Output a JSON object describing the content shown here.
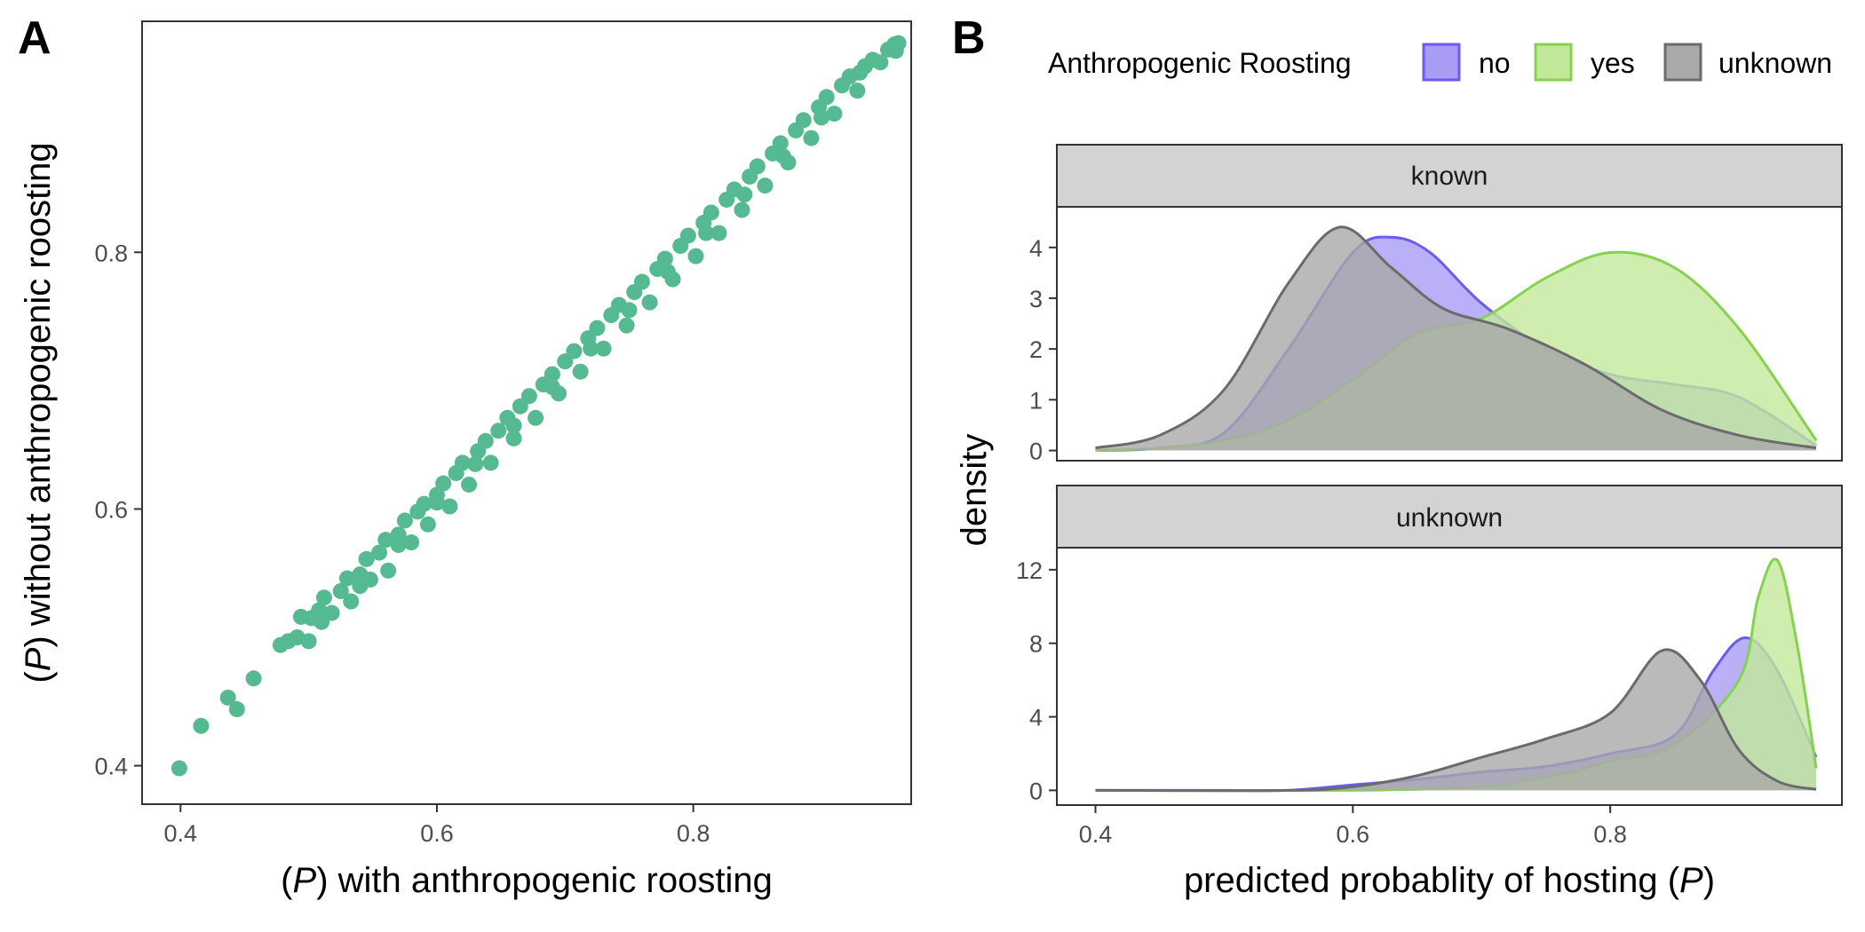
{
  "chart_data": [
    {
      "panel": "A",
      "type": "scatter",
      "xlabel": "with anthropogenic roosting",
      "ylabel": "without anthropogenic roosting",
      "prob_symbol": "P",
      "xlim": [
        0.37,
        0.97
      ],
      "ylim": [
        0.37,
        0.98
      ],
      "xticks": [
        0.4,
        0.6,
        0.8
      ],
      "yticks": [
        0.4,
        0.6,
        0.8
      ],
      "color": "#55b991",
      "points": [
        [
          0.399,
          0.398
        ],
        [
          0.416,
          0.431
        ],
        [
          0.437,
          0.453
        ],
        [
          0.444,
          0.444
        ],
        [
          0.457,
          0.468
        ],
        [
          0.478,
          0.494
        ],
        [
          0.484,
          0.497
        ],
        [
          0.491,
          0.5
        ],
        [
          0.494,
          0.516
        ],
        [
          0.5,
          0.497
        ],
        [
          0.502,
          0.515
        ],
        [
          0.508,
          0.521
        ],
        [
          0.512,
          0.531
        ],
        [
          0.518,
          0.519
        ],
        [
          0.525,
          0.536
        ],
        [
          0.53,
          0.546
        ],
        [
          0.533,
          0.528
        ],
        [
          0.54,
          0.549
        ],
        [
          0.545,
          0.561
        ],
        [
          0.548,
          0.545
        ],
        [
          0.555,
          0.566
        ],
        [
          0.56,
          0.576
        ],
        [
          0.562,
          0.552
        ],
        [
          0.57,
          0.58
        ],
        [
          0.575,
          0.591
        ],
        [
          0.58,
          0.574
        ],
        [
          0.585,
          0.598
        ],
        [
          0.59,
          0.604
        ],
        [
          0.593,
          0.588
        ],
        [
          0.6,
          0.611
        ],
        [
          0.605,
          0.62
        ],
        [
          0.61,
          0.602
        ],
        [
          0.615,
          0.628
        ],
        [
          0.62,
          0.636
        ],
        [
          0.625,
          0.619
        ],
        [
          0.632,
          0.645
        ],
        [
          0.638,
          0.653
        ],
        [
          0.642,
          0.636
        ],
        [
          0.648,
          0.661
        ],
        [
          0.655,
          0.671
        ],
        [
          0.66,
          0.655
        ],
        [
          0.665,
          0.68
        ],
        [
          0.672,
          0.688
        ],
        [
          0.677,
          0.671
        ],
        [
          0.683,
          0.697
        ],
        [
          0.69,
          0.705
        ],
        [
          0.695,
          0.69
        ],
        [
          0.7,
          0.715
        ],
        [
          0.707,
          0.723
        ],
        [
          0.712,
          0.707
        ],
        [
          0.718,
          0.733
        ],
        [
          0.725,
          0.741
        ],
        [
          0.73,
          0.725
        ],
        [
          0.736,
          0.751
        ],
        [
          0.742,
          0.759
        ],
        [
          0.748,
          0.743
        ],
        [
          0.754,
          0.769
        ],
        [
          0.76,
          0.777
        ],
        [
          0.766,
          0.761
        ],
        [
          0.772,
          0.787
        ],
        [
          0.778,
          0.795
        ],
        [
          0.784,
          0.779
        ],
        [
          0.79,
          0.805
        ],
        [
          0.796,
          0.813
        ],
        [
          0.802,
          0.797
        ],
        [
          0.808,
          0.823
        ],
        [
          0.814,
          0.831
        ],
        [
          0.82,
          0.815
        ],
        [
          0.826,
          0.841
        ],
        [
          0.832,
          0.849
        ],
        [
          0.838,
          0.833
        ],
        [
          0.844,
          0.859
        ],
        [
          0.85,
          0.867
        ],
        [
          0.856,
          0.852
        ],
        [
          0.862,
          0.877
        ],
        [
          0.868,
          0.885
        ],
        [
          0.874,
          0.87
        ],
        [
          0.88,
          0.895
        ],
        [
          0.886,
          0.903
        ],
        [
          0.892,
          0.889
        ],
        [
          0.898,
          0.913
        ],
        [
          0.904,
          0.921
        ],
        [
          0.91,
          0.908
        ],
        [
          0.916,
          0.93
        ],
        [
          0.922,
          0.937
        ],
        [
          0.928,
          0.926
        ],
        [
          0.934,
          0.945
        ],
        [
          0.94,
          0.95
        ],
        [
          0.946,
          0.948
        ],
        [
          0.952,
          0.958
        ],
        [
          0.957,
          0.962
        ],
        [
          0.96,
          0.963
        ],
        [
          0.958,
          0.957
        ],
        [
          0.93,
          0.94
        ],
        [
          0.9,
          0.905
        ],
        [
          0.87,
          0.875
        ],
        [
          0.84,
          0.845
        ],
        [
          0.81,
          0.815
        ],
        [
          0.78,
          0.785
        ],
        [
          0.75,
          0.755
        ],
        [
          0.72,
          0.725
        ],
        [
          0.69,
          0.695
        ],
        [
          0.66,
          0.665
        ],
        [
          0.63,
          0.635
        ],
        [
          0.6,
          0.605
        ],
        [
          0.57,
          0.572
        ],
        [
          0.54,
          0.54
        ],
        [
          0.51,
          0.512
        ]
      ]
    },
    {
      "panel": "B",
      "type": "area",
      "xlabel": "predicted probablity of hosting",
      "ylabel": "density",
      "prob_symbol": "P",
      "legend_title": "Anthropogenic Roosting",
      "legend_position": "top",
      "xlim": [
        0.37,
        0.98
      ],
      "xticks": [
        0.4,
        0.6,
        0.8
      ],
      "legend": [
        {
          "label": "no",
          "fill": "#a89cf5",
          "stroke": "#6a5cf0"
        },
        {
          "label": "yes",
          "fill": "#c2e89a",
          "stroke": "#85d24f"
        },
        {
          "label": "unknown",
          "fill": "#a9a9a9",
          "stroke": "#6b6b6b"
        }
      ],
      "facets": [
        {
          "label": "known",
          "ylim": [
            -0.2,
            4.8
          ],
          "yticks": [
            0,
            1,
            2,
            3,
            4
          ],
          "series": [
            {
              "name": "no",
              "fill": "#a89cf5",
              "stroke": "#6a5cf0",
              "opacity": 0.8,
              "x": [
                0.4,
                0.45,
                0.5,
                0.55,
                0.6,
                0.63,
                0.66,
                0.7,
                0.75,
                0.8,
                0.85,
                0.9,
                0.96
              ],
              "y": [
                0.0,
                0.05,
                0.35,
                2.0,
                3.9,
                4.2,
                3.9,
                2.9,
                2.0,
                1.5,
                1.3,
                1.05,
                0.1
              ]
            },
            {
              "name": "yes",
              "fill": "#c2e89a",
              "stroke": "#85d24f",
              "opacity": 0.8,
              "x": [
                0.4,
                0.45,
                0.5,
                0.55,
                0.6,
                0.65,
                0.7,
                0.75,
                0.8,
                0.85,
                0.9,
                0.96
              ],
              "y": [
                0.0,
                0.05,
                0.2,
                0.6,
                1.4,
                2.3,
                2.6,
                3.4,
                3.9,
                3.6,
                2.4,
                0.2
              ]
            },
            {
              "name": "unknown",
              "fill": "#a9a9a9",
              "stroke": "#6b6b6b",
              "opacity": 0.8,
              "x": [
                0.4,
                0.45,
                0.5,
                0.55,
                0.59,
                0.63,
                0.67,
                0.72,
                0.78,
                0.84,
                0.9,
                0.96
              ],
              "y": [
                0.05,
                0.3,
                1.2,
                3.3,
                4.4,
                3.6,
                2.8,
                2.4,
                1.7,
                0.8,
                0.3,
                0.05
              ]
            }
          ]
        },
        {
          "label": "unknown",
          "ylim": [
            -0.8,
            13.2
          ],
          "yticks": [
            0,
            4,
            8,
            12
          ],
          "series": [
            {
              "name": "no",
              "fill": "#a89cf5",
              "stroke": "#6a5cf0",
              "opacity": 0.8,
              "x": [
                0.4,
                0.5,
                0.55,
                0.6,
                0.65,
                0.7,
                0.75,
                0.8,
                0.85,
                0.88,
                0.905,
                0.93,
                0.96
              ],
              "y": [
                0.0,
                0.0,
                0.0,
                0.3,
                0.6,
                1.0,
                1.3,
                2.0,
                3.0,
                6.5,
                8.3,
                6.5,
                1.8
              ]
            },
            {
              "name": "yes",
              "fill": "#c2e89a",
              "stroke": "#85d24f",
              "opacity": 0.8,
              "x": [
                0.4,
                0.6,
                0.7,
                0.74,
                0.77,
                0.8,
                0.85,
                0.9,
                0.915,
                0.93,
                0.945,
                0.96
              ],
              "y": [
                0.0,
                0.0,
                0.2,
                0.6,
                1.0,
                1.6,
                2.5,
                6.0,
                10.5,
                12.5,
                8.0,
                1.2
              ]
            },
            {
              "name": "unknown",
              "fill": "#a9a9a9",
              "stroke": "#6b6b6b",
              "opacity": 0.8,
              "x": [
                0.4,
                0.55,
                0.6,
                0.65,
                0.7,
                0.75,
                0.8,
                0.84,
                0.87,
                0.9,
                0.93,
                0.96
              ],
              "y": [
                0.0,
                0.0,
                0.2,
                0.8,
                1.8,
                2.8,
                4.2,
                7.6,
                6.0,
                2.2,
                0.5,
                0.05
              ]
            }
          ]
        }
      ]
    }
  ]
}
